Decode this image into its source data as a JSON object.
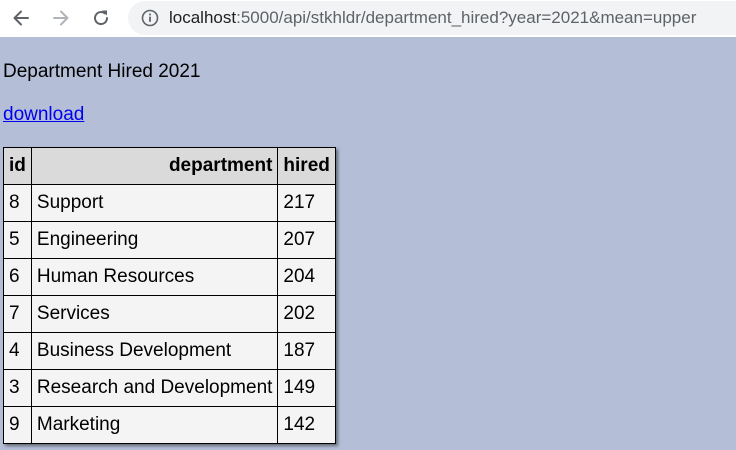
{
  "browser": {
    "url_host": "localhost",
    "url_rest": ":5000/api/stkhldr/department_hired?year=2021&mean=upper",
    "icons": {
      "back": "arrow-left-icon",
      "forward": "arrow-right-icon",
      "reload": "reload-icon",
      "site_info": "info-icon"
    }
  },
  "page": {
    "title": "Department Hired 2021",
    "download_label": "download"
  },
  "table": {
    "headers": {
      "id": "id",
      "department": "department",
      "hired": "hired"
    },
    "rows": [
      {
        "id": "8",
        "department": "Support",
        "hired": "217"
      },
      {
        "id": "5",
        "department": "Engineering",
        "hired": "207"
      },
      {
        "id": "6",
        "department": "Human Resources",
        "hired": "204"
      },
      {
        "id": "7",
        "department": "Services",
        "hired": "202"
      },
      {
        "id": "4",
        "department": "Business Development",
        "hired": "187"
      },
      {
        "id": "3",
        "department": "Research and Development",
        "hired": "149"
      },
      {
        "id": "9",
        "department": "Marketing",
        "hired": "142"
      }
    ]
  },
  "colors": {
    "page_background": "#b4bfd7",
    "table_header": "#dadada",
    "table_body": "#f4f4f4",
    "link": "#0000ee"
  }
}
